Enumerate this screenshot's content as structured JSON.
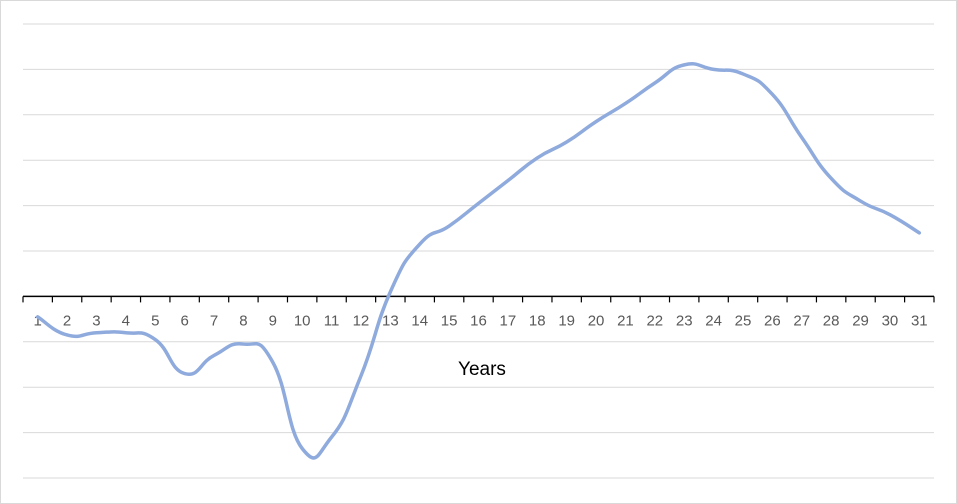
{
  "chart_data": {
    "type": "line",
    "title": "",
    "xlabel": "Years",
    "ylabel": "",
    "categories": [
      "1",
      "2",
      "3",
      "4",
      "5",
      "6",
      "7",
      "8",
      "9",
      "10",
      "11",
      "12",
      "13",
      "14",
      "15",
      "16",
      "17",
      "18",
      "19",
      "20",
      "21",
      "22",
      "23",
      "24",
      "25",
      "26",
      "27",
      "28",
      "29",
      "30",
      "31"
    ],
    "series": [
      {
        "values": [
          -0.45,
          -0.85,
          -0.8,
          -0.8,
          -0.95,
          -1.7,
          -1.3,
          -1.05,
          -1.45,
          -3.35,
          -3.1,
          -1.75,
          0.1,
          1.15,
          1.55,
          2.05,
          2.55,
          3.05,
          3.4,
          3.85,
          4.25,
          4.7,
          5.1,
          5.0,
          4.9,
          4.45,
          3.5,
          2.6,
          2.1,
          1.8,
          1.4
        ]
      }
    ],
    "ylim": [
      -4,
      6
    ],
    "grid": true,
    "legend": "none",
    "line_color": "#8faadc",
    "grid_color": "#d9d9d9",
    "axis_color": "#000000"
  }
}
